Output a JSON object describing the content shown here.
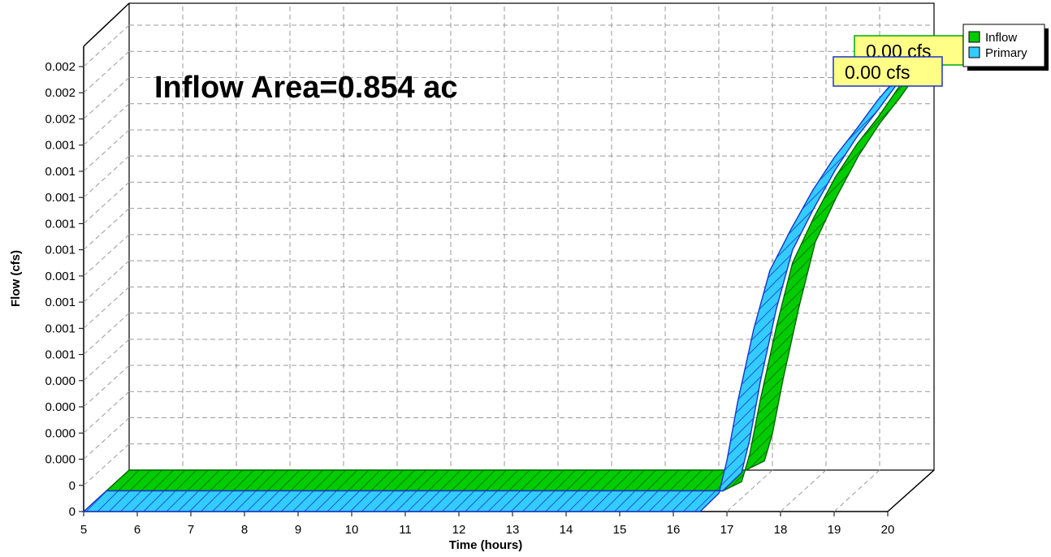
{
  "chart_data": {
    "type": "area",
    "annotation": "Inflow Area=0.854 ac",
    "xlabel": "Time  (hours)",
    "ylabel": "Flow  (cfs)",
    "xlim": [
      5,
      20
    ],
    "x_ticks": [
      "5",
      "6",
      "7",
      "8",
      "9",
      "10",
      "11",
      "12",
      "13",
      "14",
      "15",
      "16",
      "17",
      "18",
      "19",
      "20"
    ],
    "y_tick_labels": [
      "0",
      "0",
      "0.000",
      "0.000",
      "0.000",
      "0.000",
      "0.001",
      "0.001",
      "0.001",
      "0.001",
      "0.001",
      "0.001",
      "0.001",
      "0.001",
      "0.001",
      "0.002",
      "0.002",
      "0.002"
    ],
    "ylim": [
      0,
      0.00255
    ],
    "grid": true,
    "legend_position": "top-right",
    "series": [
      {
        "name": "Inflow",
        "color": "#00cc00",
        "x": [
          5,
          16.5,
          16.85,
          17.0,
          17.2,
          17.5,
          17.8,
          18.2,
          18.6,
          19.0,
          19.4,
          19.8,
          20.0
        ],
        "y": [
          0,
          0,
          5e-05,
          0.0002,
          0.0005,
          0.0009,
          0.00125,
          0.0015,
          0.00172,
          0.0019,
          0.00205,
          0.00222,
          0.0023
        ],
        "peak_label": "0.00 cfs"
      },
      {
        "name": "Primary",
        "color": "#33ccff",
        "x": [
          5,
          16.5,
          16.85,
          17.0,
          17.2,
          17.5,
          17.8,
          18.2,
          18.6,
          19.0,
          19.4,
          19.8,
          20.0
        ],
        "y": [
          0,
          0,
          0.0001,
          0.00028,
          0.0006,
          0.001,
          0.00132,
          0.00155,
          0.00176,
          0.00194,
          0.00209,
          0.00225,
          0.00232
        ],
        "peak_label": "0.00 cfs"
      }
    ]
  }
}
